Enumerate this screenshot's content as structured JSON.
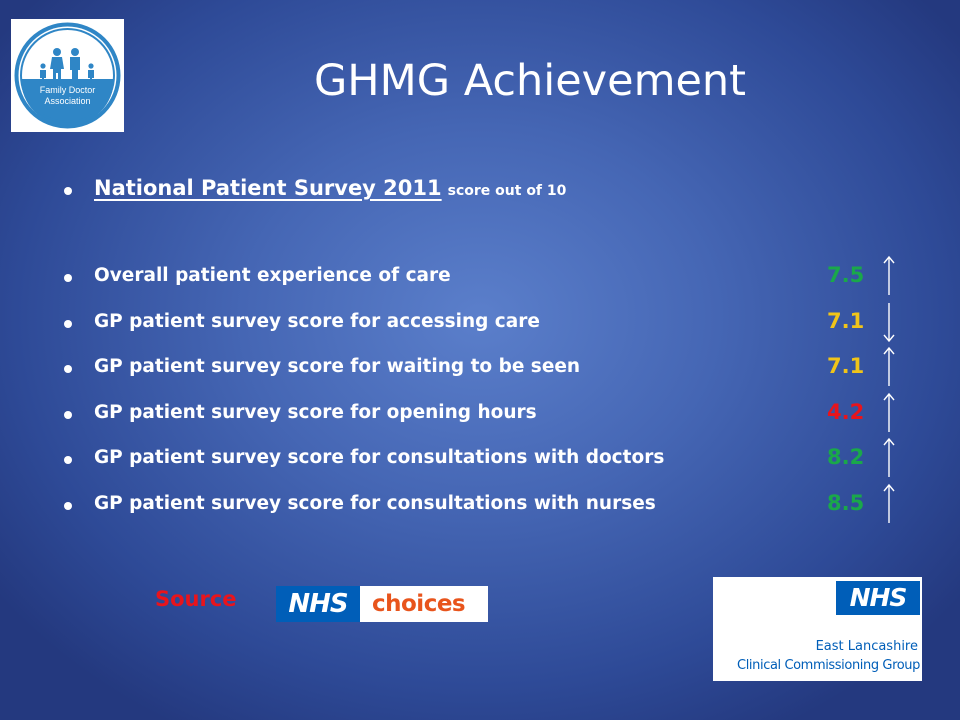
{
  "slide": {
    "title": "GHMG Achievement",
    "fda_logo": {
      "icon": "family-figures-icon",
      "line1": "Family Doctor",
      "line2": "Association"
    },
    "heading": {
      "text": "National Patient Survey 2011",
      "subtext": "score out of 10"
    },
    "rows": [
      {
        "label": "Overall patient experience of care",
        "score": "7.5",
        "score_color": "#1aa84a",
        "trend": "up"
      },
      {
        "label": "GP patient survey score for accessing care",
        "score": "7.1",
        "score_color": "#f0c419",
        "trend": "down"
      },
      {
        "label": "GP patient survey score for waiting to be seen",
        "score": "7.1",
        "score_color": "#f0c419",
        "trend": "up"
      },
      {
        "label": "GP patient survey score for opening hours",
        "score": "4.2",
        "score_color": "#e8141c",
        "trend": "up"
      },
      {
        "label": "GP patient survey score for consultations with doctors",
        "score": "8.2",
        "score_color": "#1aa84a",
        "trend": "up"
      },
      {
        "label": "GP patient survey score for consultations with nurses",
        "score": "8.5",
        "score_color": "#1aa84a",
        "trend": "up"
      }
    ],
    "source": {
      "label": "Source",
      "nhs": "NHS",
      "choices": "choices"
    },
    "ccg_logo": {
      "nhs": "NHS",
      "line1": "East Lancashire",
      "line2": "Clinical Commissioning Group"
    },
    "colors": {
      "nhs_blue": "#005eb8",
      "source_red": "#e8141c",
      "choices_orange": "#e8541c",
      "background": "#4566b4"
    }
  }
}
